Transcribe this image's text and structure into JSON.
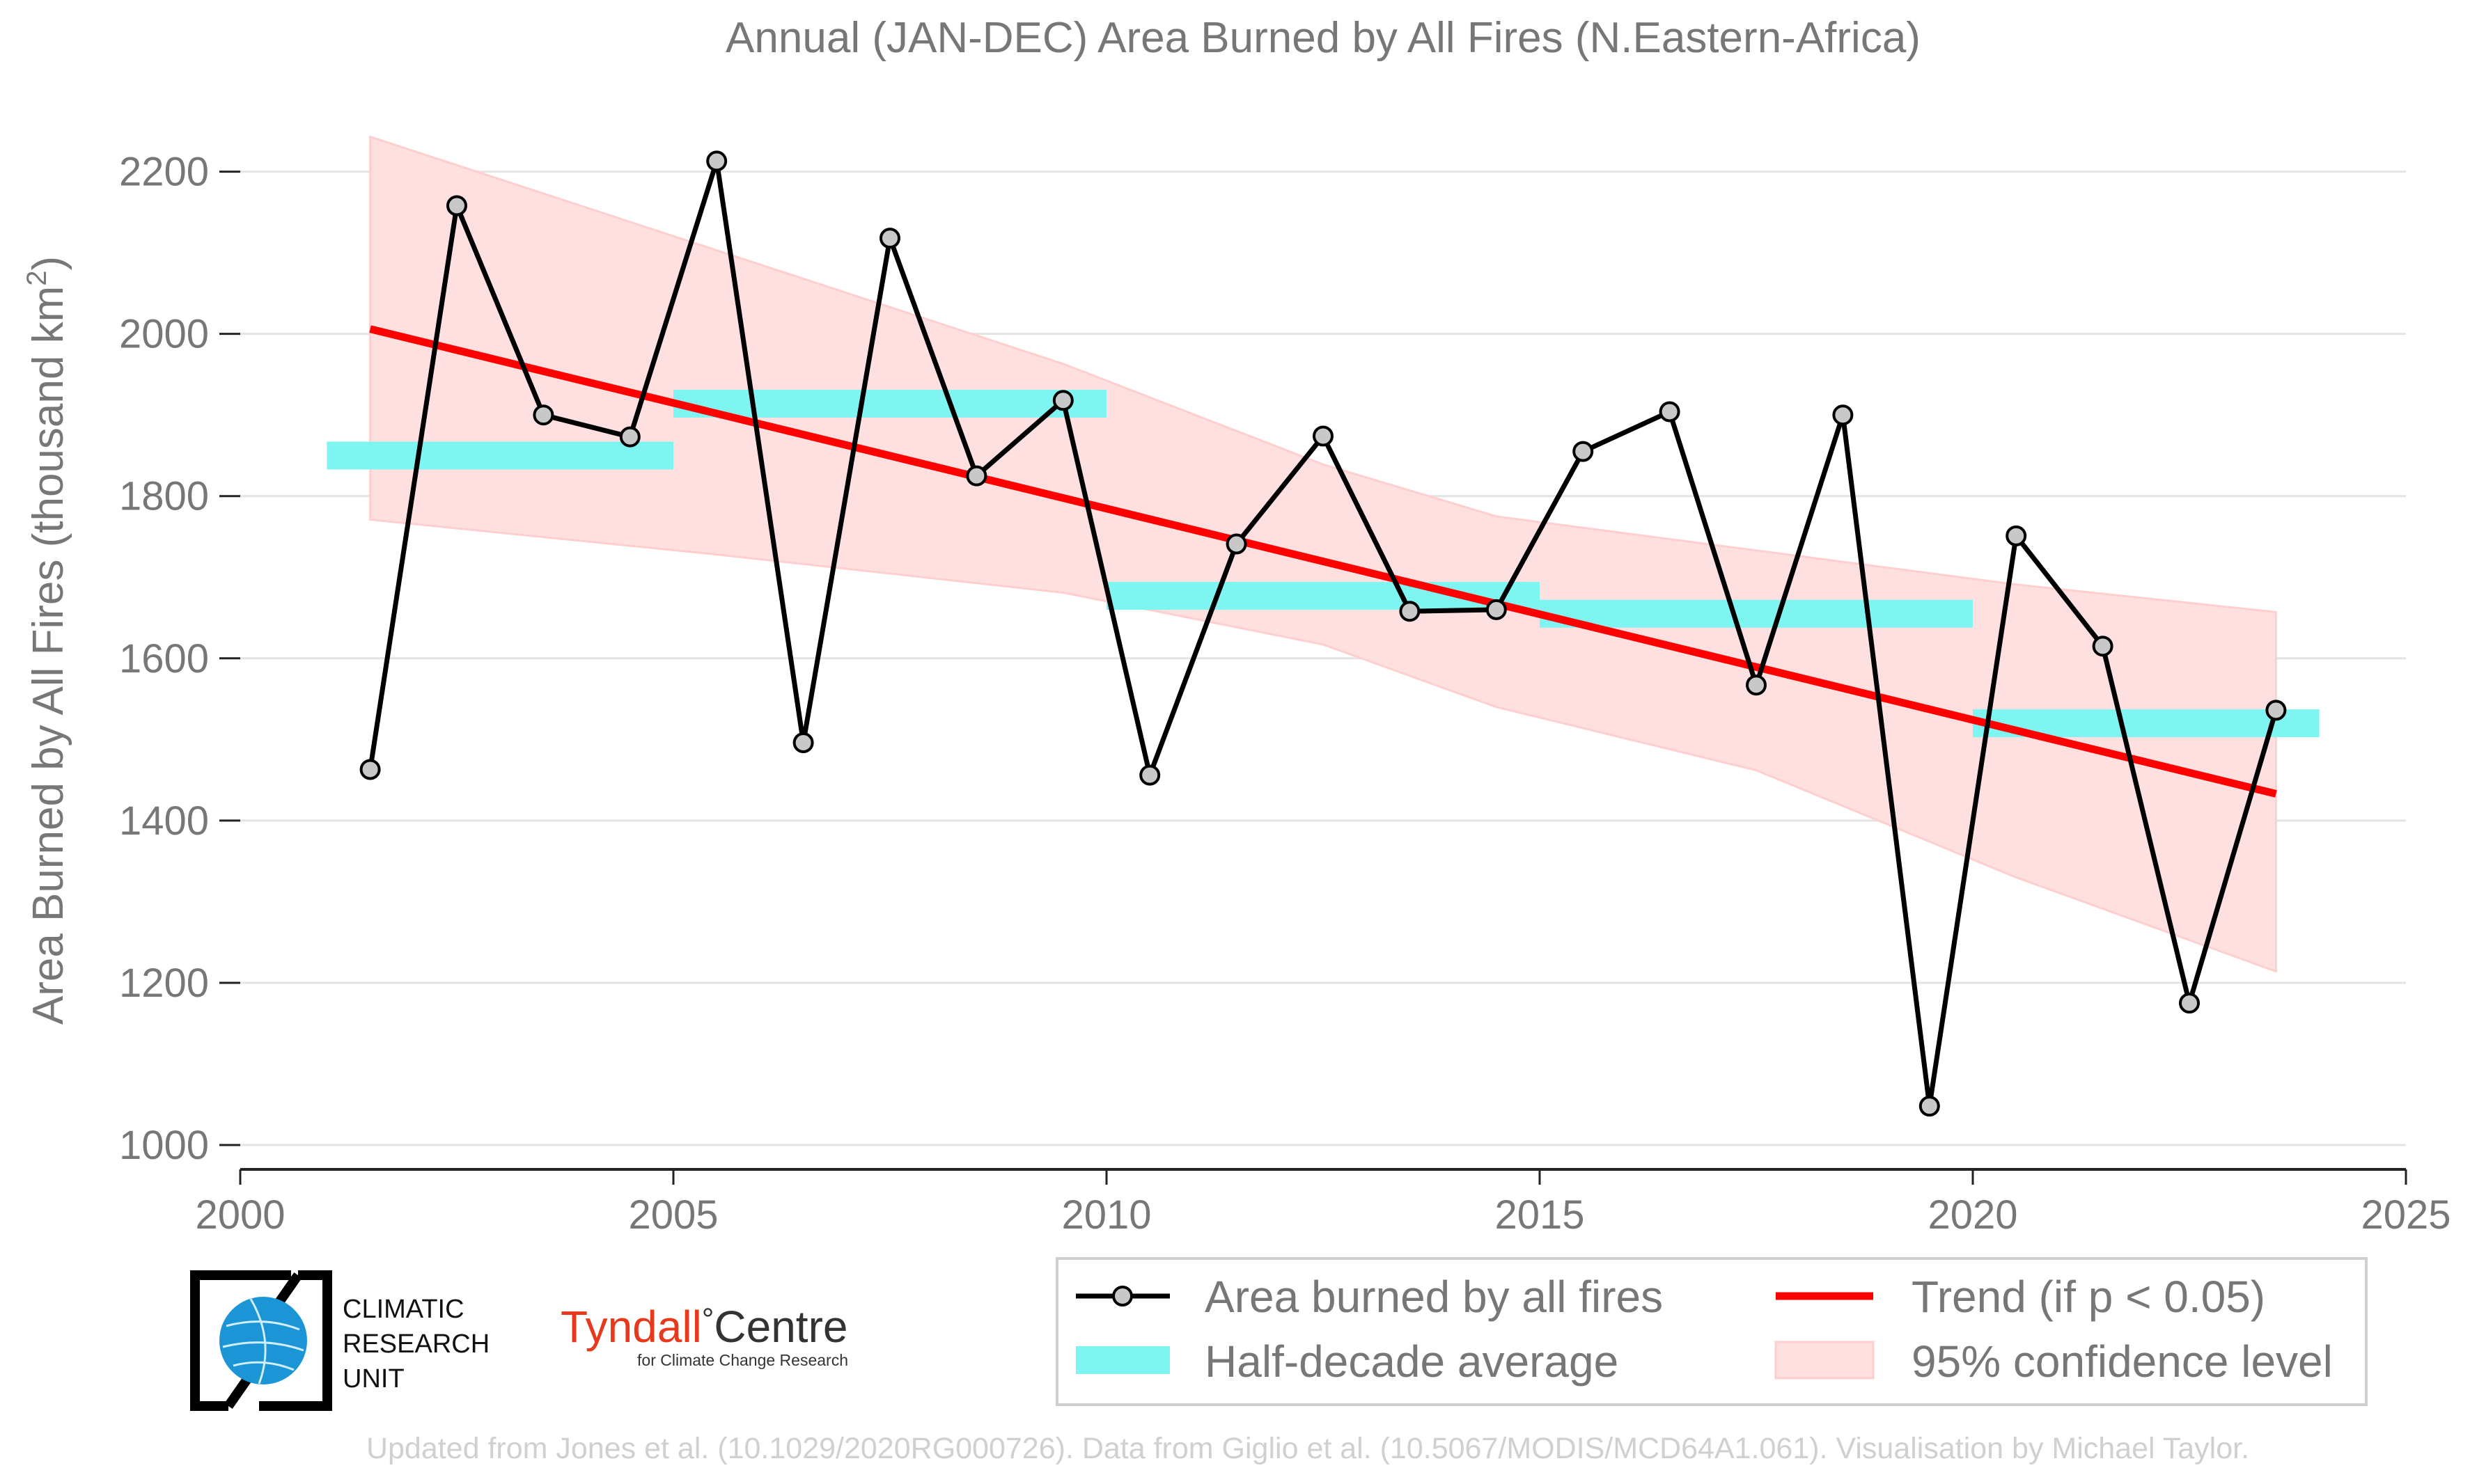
{
  "chart_data": {
    "type": "line",
    "title": "Annual (JAN-DEC) Area Burned by All Fires (N.Eastern-Africa)",
    "ylabel": "Area Burned by All Fires (thousand km",
    "ylabel_sup": "2",
    "ylabel_close": ")",
    "xlim": [
      2000,
      2025
    ],
    "ylim": [
      970,
      2270
    ],
    "x_ticks": [
      2000,
      2005,
      2010,
      2015,
      2020,
      2025
    ],
    "y_ticks": [
      1000,
      1200,
      1400,
      1600,
      1800,
      2000,
      2200
    ],
    "grid": "horizontal",
    "series": [
      {
        "name": "Area burned by all fires",
        "x": [
          2001.5,
          2002.5,
          2003.5,
          2004.5,
          2005.5,
          2006.5,
          2007.5,
          2008.5,
          2009.5,
          2010.5,
          2011.5,
          2012.5,
          2013.5,
          2014.5,
          2015.5,
          2016.5,
          2017.5,
          2018.5,
          2019.5,
          2020.5,
          2021.5,
          2022.5,
          2023.5
        ],
        "values": [
          1463,
          2158,
          1900,
          1873,
          2213,
          1496,
          2118,
          1825,
          1918,
          1456,
          1741,
          1874,
          1658,
          1660,
          1855,
          1904,
          1567,
          1900,
          1048,
          1751,
          1615,
          1175,
          1536
        ]
      }
    ],
    "half_decade_average": {
      "name": "Half-decade average",
      "segments": [
        {
          "x0": 2001,
          "x1": 2005,
          "value": 1850
        },
        {
          "x0": 2005,
          "x1": 2010,
          "value": 1914
        },
        {
          "x0": 2010,
          "x1": 2015,
          "value": 1677
        },
        {
          "x0": 2015,
          "x1": 2020,
          "value": 1655
        },
        {
          "x0": 2020,
          "x1": 2024,
          "value": 1520
        }
      ]
    },
    "trend": {
      "name": "Trend (if p < 0.05)",
      "x": [
        2001.5,
        2023.5
      ],
      "values": [
        2006,
        1433
      ]
    },
    "confidence_band": {
      "name": "95% confidence level",
      "x": [
        2001.5,
        2005.5,
        2009.5,
        2012.5,
        2014.5,
        2017.5,
        2020.5,
        2023.5
      ],
      "upper": [
        2243,
        2103,
        1963,
        1839,
        1775,
        1733,
        1691,
        1657
      ],
      "lower": [
        1771,
        1728,
        1681,
        1617,
        1540,
        1462,
        1330,
        1214
      ]
    },
    "legend": {
      "placement": "bottom-right",
      "items": [
        "Area burned by all fires",
        "Trend (if p < 0.05)",
        "Half-decade average",
        "95% confidence level"
      ]
    },
    "colors": {
      "series": "#000000",
      "marker_fill": "#c8c8c8",
      "trend": "#ff0000",
      "half_decade": "#7ff5f2",
      "confidence": "#ffe0e0",
      "confidence_edge": "#ffcfcf",
      "text": "#777777",
      "grid": "#e4e4e4"
    }
  },
  "logos": {
    "cru": {
      "line1": "CLIMATIC",
      "line2": "RESEARCH",
      "line3": "UNIT",
      "icon": "globe-icon"
    },
    "tyndall": {
      "main": "Tyndall",
      "degree": "°",
      "centre": "Centre",
      "sub": "for Climate Change Research",
      "color": "#e8391d"
    }
  },
  "footer": {
    "credit": "Updated from Jones et al. (10.1029/2020RG000726). Data from Giglio et al. (10.5067/MODIS/MCD64A1.061). Visualisation by Michael Taylor."
  }
}
